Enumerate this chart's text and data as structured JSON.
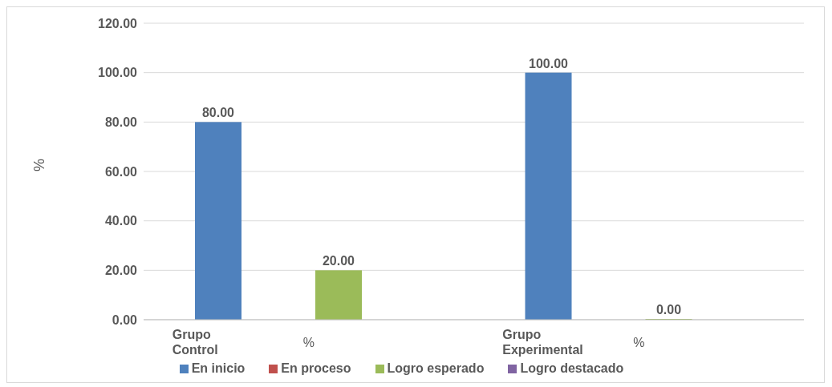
{
  "chart_data": {
    "type": "bar",
    "categories": [
      "Grupo Control",
      "Grupo Experimental"
    ],
    "series": [
      {
        "name": "En inicio",
        "color": "#4f81bd",
        "values": [
          80,
          100
        ],
        "value_labels": [
          "80.00",
          "100.00"
        ]
      },
      {
        "name": "En proceso",
        "color": "#c0504d",
        "values": [
          null,
          null
        ]
      },
      {
        "name": "Logro esperado",
        "color": "#9bbb59",
        "values": [
          20,
          0
        ],
        "value_labels": [
          "20.00",
          "0.00"
        ]
      },
      {
        "name": "Logro destacado",
        "color": "#8064a2",
        "values": [
          null,
          null
        ]
      }
    ],
    "ylabel": "%",
    "annotations": [
      "%",
      "%"
    ],
    "ylim": [
      0,
      120
    ],
    "yticks": [
      {
        "value": 0,
        "label": "0.00"
      },
      {
        "value": 20,
        "label": "20.00"
      },
      {
        "value": 40,
        "label": "40.00"
      },
      {
        "value": 60,
        "label": "60.00"
      },
      {
        "value": 80,
        "label": "80.00"
      },
      {
        "value": 100,
        "label": "100.00"
      },
      {
        "value": 120,
        "label": "120.00"
      }
    ],
    "grid": "y",
    "legend": "bottom"
  }
}
